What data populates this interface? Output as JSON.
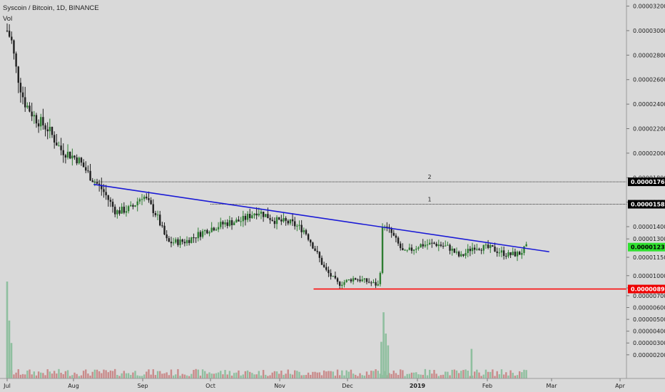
{
  "header": {
    "title": "Syscoin / Bitcoin, 1D, BINANCE",
    "indicator": "Vol"
  },
  "colors": {
    "background": "#d9d9d9",
    "up_candle": "#2e7d32",
    "down_candle": "#1f1f1f",
    "up_volume": "#8fbf9f",
    "down_volume": "#c98a8a",
    "trendline": "#1a1ad6",
    "support": "#ff0000",
    "resistance_lines": "#333333",
    "current_badge": "#2fe02f"
  },
  "chart_data": {
    "type": "candlestick",
    "symbol": "Syscoin / Bitcoin",
    "interval": "1D",
    "exchange": "BINANCE",
    "x_ticks": [
      "Jul",
      "Aug",
      "Sep",
      "Oct",
      "Nov",
      "Dec",
      "2019",
      "Feb",
      "Mar",
      "Apr"
    ],
    "price_ticks": [
      "0.00003200",
      "0.00003000",
      "0.00002800",
      "0.00002600",
      "0.00002400",
      "0.00002200",
      "0.00002000",
      "0.00001800",
      "0.00001600",
      "0.00001400",
      "0.00001300",
      "0.00001150",
      "0.00001000",
      "0.00000850"
    ],
    "volume_ticks": [
      "0.00000700",
      "0.00000600",
      "0.00000500",
      "0.00000400",
      "0.00000300",
      "0.00000200"
    ],
    "price_range": [
      8.3e-06,
      3.25e-05
    ],
    "resistance_levels": [
      {
        "label": "2",
        "value": 1.766e-05,
        "text": "0.00001766"
      },
      {
        "label": "1",
        "value": 1.583e-05,
        "text": "0.00001583"
      }
    ],
    "support_level": {
      "value": 8.91e-06,
      "text": "0.00000891"
    },
    "current_price": {
      "value": 1.233e-05,
      "text": "0.00001233"
    },
    "trendline": {
      "start": [
        "Aug 10",
        1.745e-05
      ],
      "end": [
        "Feb 28",
        1.195e-05
      ]
    },
    "close_anchors": [
      [
        "Jul 1",
        3e-05
      ],
      [
        "Jul 3",
        2.92e-05
      ],
      [
        "Jul 5",
        2.7e-05
      ],
      [
        "Jul 9",
        2.42e-05
      ],
      [
        "Jul 14",
        2.29e-05
      ],
      [
        "Jul 20",
        2.2e-05
      ],
      [
        "Jul 26",
        2.03e-05
      ],
      [
        "Aug 3",
        1.95e-05
      ],
      [
        "Aug 9",
        1.8e-05
      ],
      [
        "Aug 14",
        1.7e-05
      ],
      [
        "Aug 20",
        1.52e-05
      ],
      [
        "Aug 27",
        1.55e-05
      ],
      [
        "Sep 1",
        1.66e-05
      ],
      [
        "Sep 7",
        1.5e-05
      ],
      [
        "Sep 12",
        1.27e-05
      ],
      [
        "Sep 20",
        1.28e-05
      ],
      [
        "Sep 30",
        1.38e-05
      ],
      [
        "Oct 8",
        1.43e-05
      ],
      [
        "Oct 15",
        1.45e-05
      ],
      [
        "Oct 22",
        1.53e-05
      ],
      [
        "Oct 30",
        1.45e-05
      ],
      [
        "Nov 6",
        1.43e-05
      ],
      [
        "Nov 12",
        1.37e-05
      ],
      [
        "Nov 17",
        1.2e-05
      ],
      [
        "Nov 21",
        1.05e-05
      ],
      [
        "Nov 27",
        9.3e-06
      ],
      [
        "Dec 4",
        9.8e-06
      ],
      [
        "Dec 10",
        9.5e-06
      ],
      [
        "Dec 15",
        9.2e-06
      ],
      [
        "Dec 17",
        1.4e-05
      ],
      [
        "Dec 20",
        1.36e-05
      ],
      [
        "Dec 26",
        1.18e-05
      ],
      [
        "Jan 2",
        1.25e-05
      ],
      [
        "Jan 9",
        1.26e-05
      ],
      [
        "Jan 15",
        1.23e-05
      ],
      [
        "Jan 20",
        1.15e-05
      ],
      [
        "Jan 26",
        1.24e-05
      ],
      [
        "Feb 3",
        1.22e-05
      ],
      [
        "Feb 10",
        1.17e-05
      ],
      [
        "Feb 15",
        1.18e-05
      ],
      [
        "Feb 18",
        1.23e-05
      ]
    ],
    "volume_spikes": [
      [
        "Jul 1",
        8.2e-06
      ],
      [
        "Jul 2",
        4.9e-06
      ],
      [
        "Jul 3",
        3e-06
      ],
      [
        "Dec 16",
        3.1e-06
      ],
      [
        "Dec 17",
        5.6e-06
      ],
      [
        "Dec 18",
        3.8e-06
      ],
      [
        "Dec 19",
        2.8e-06
      ],
      [
        "Jan 25",
        2.5e-06
      ]
    ]
  }
}
